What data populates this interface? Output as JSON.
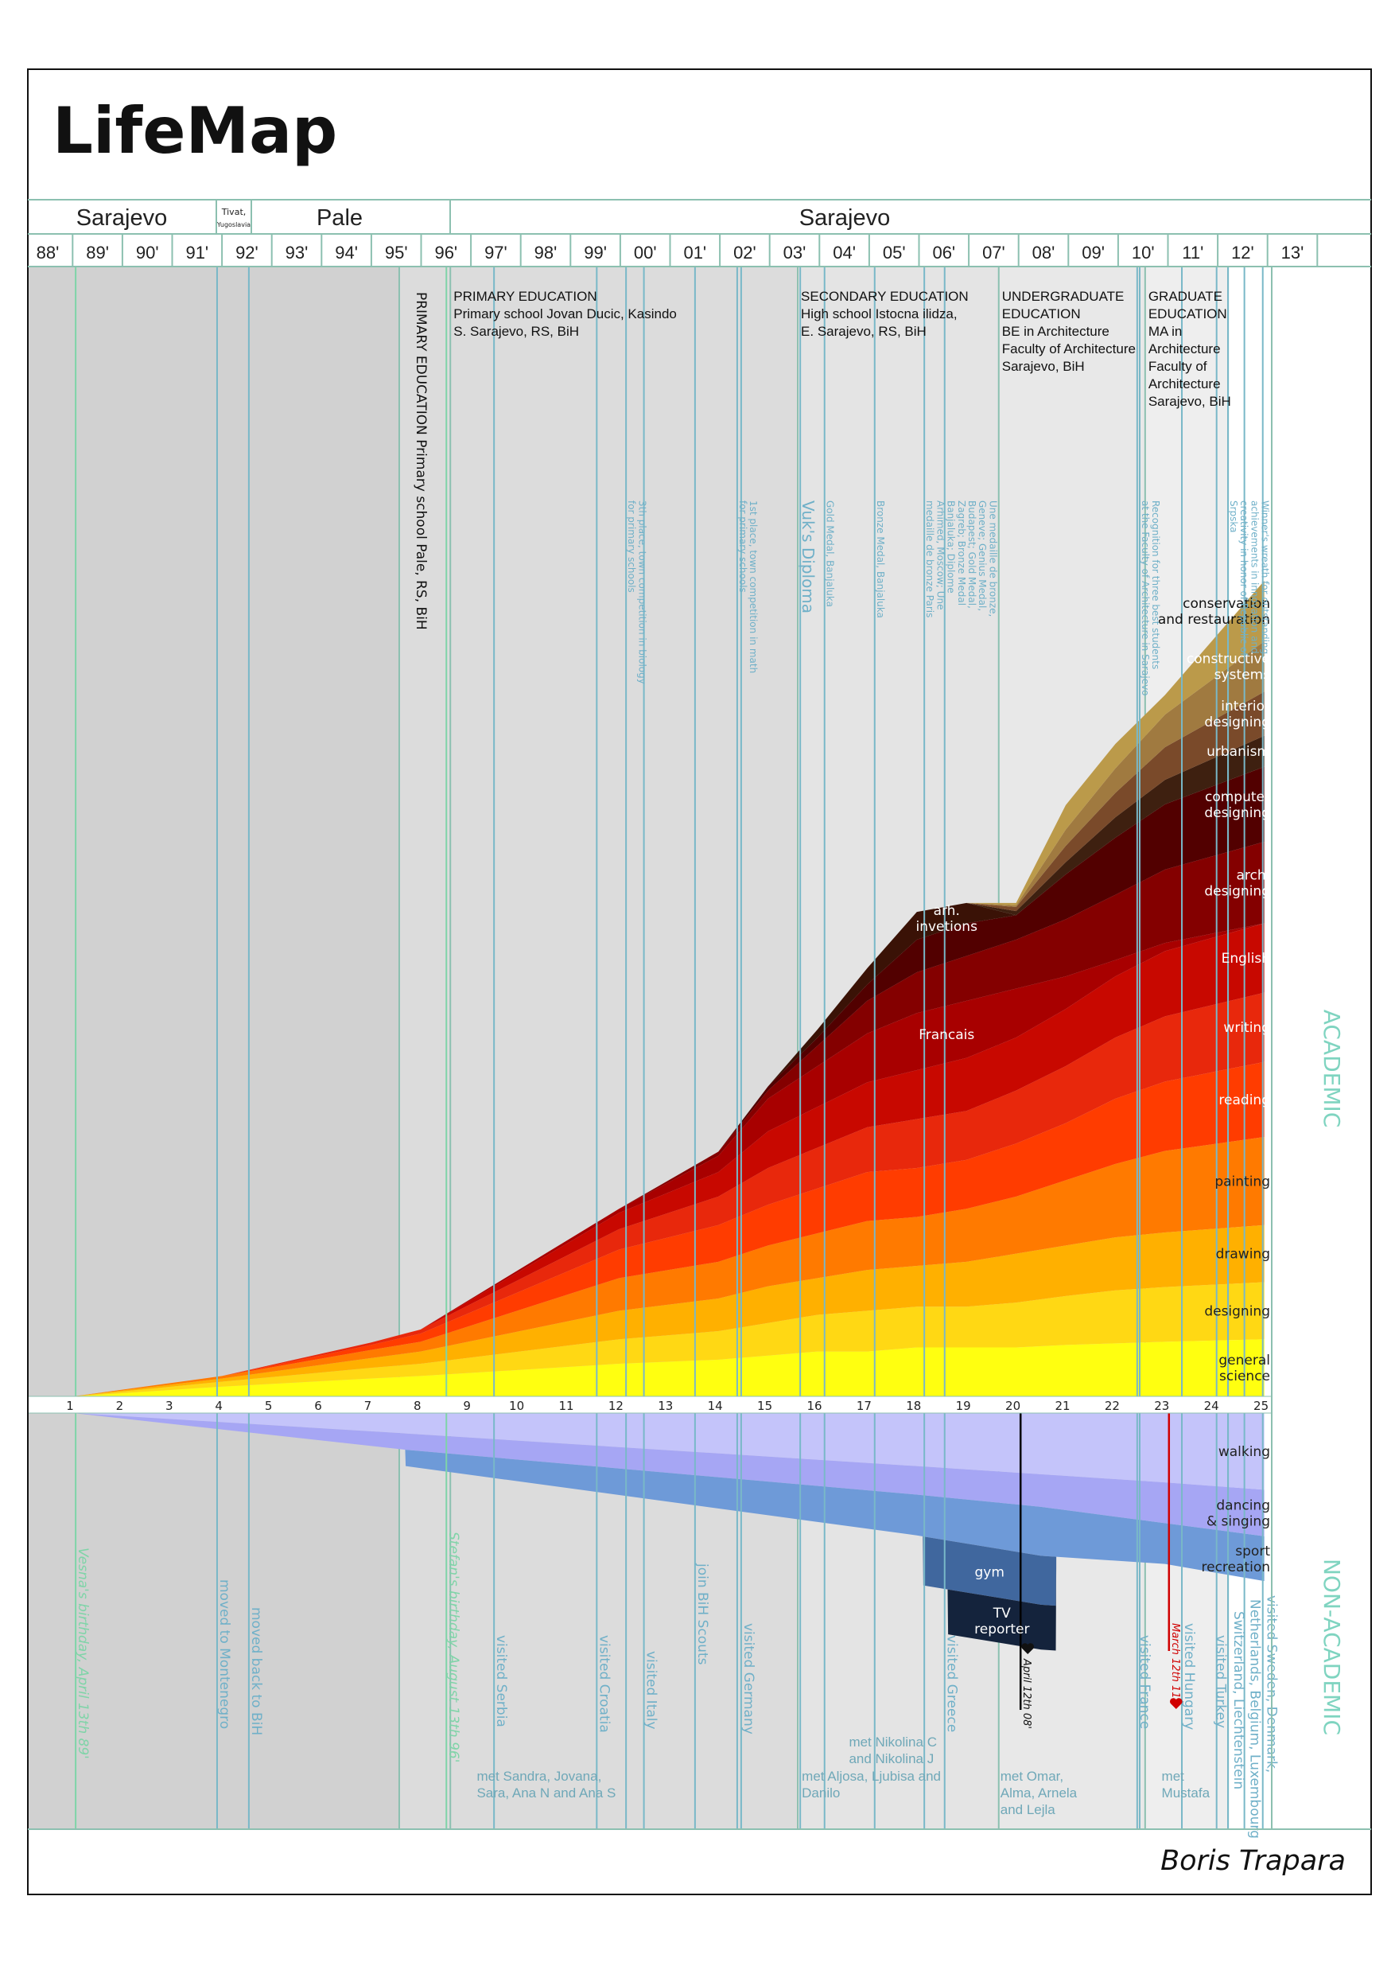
{
  "title": "LifeMap",
  "author": "Boris Trapara",
  "header": {
    "locations": [
      {
        "name": "Sarajevo"
      },
      {
        "name": "Tivat,",
        "sub": "Yugoslavia"
      },
      {
        "name": "Pale"
      },
      {
        "name": "Sarajevo"
      }
    ],
    "years": [
      "88'",
      "89'",
      "90'",
      "91'",
      "92'",
      "93'",
      "94'",
      "95'",
      "96'",
      "97'",
      "98'",
      "99'",
      "00'",
      "01'",
      "02'",
      "03'",
      "04'",
      "05'",
      "06'",
      "07'",
      "08'",
      "09'",
      "10'",
      "11'",
      "12'",
      "13'"
    ]
  },
  "side_labels": {
    "academic": "ACADEMIC",
    "non_academic": "NON-ACADEMIC"
  },
  "colors": {
    "grid_line": "#8cc0b0",
    "event_line": "#79b8c8",
    "birthday_line": "#7fd4a8",
    "side_label": "#7fd4c0",
    "heart_red": "#d00000"
  },
  "education": [
    {
      "start_age": 7.57,
      "color": "#dcdcdc",
      "vertical": true,
      "lines": [
        "PRIMARY EDUCATION Primary school Pale, RS, BiH"
      ]
    },
    {
      "start_age": 8.6,
      "color": "#dcdcdc",
      "lines": [
        "PRIMARY EDUCATION",
        "Primary school Jovan Ducic, Kasindo",
        "S. Sarajevo, RS, BiH"
      ]
    },
    {
      "start_age": 15.6,
      "color": "#e4e4e4",
      "lines": [
        "SECONDARY EDUCATION",
        "High school Istocna ilidza,",
        "E. Sarajevo, RS, BiH"
      ]
    },
    {
      "start_age": 19.65,
      "color": "#e8e8e8",
      "lines": [
        "UNDERGRADUATE",
        "EDUCATION",
        "BE in Architecture",
        "Faculty of Architecture",
        "Sarajevo, BiH"
      ]
    },
    {
      "start_age": 22.6,
      "color": "#eeeeee",
      "lines": [
        "GRADUATE",
        "EDUCATION",
        "MA in",
        "Architecture",
        "Faculty of",
        "Architecture",
        "Sarajevo, BiH"
      ]
    }
  ],
  "academic_events": [
    {
      "age": 12.14,
      "lines": [
        "3th place, town competition in biology",
        "for primary schools"
      ]
    },
    {
      "age": 14.38,
      "lines": [
        "1st place, town competition in math",
        "for primary schools"
      ]
    },
    {
      "age": 15.65,
      "big": true,
      "lines": [
        "Vuk's Diploma"
      ]
    },
    {
      "age": 16.14,
      "lines": [
        "Gold Medal, Banjaluka"
      ]
    },
    {
      "age": 17.15,
      "lines": [
        "Bronze Medal, Banjaluka"
      ]
    },
    {
      "age": 18.15,
      "lines": [
        "Une medaille de bronze,",
        "Geneve; Genius Medal,",
        "Budapest; Gold Medal,",
        "Zagreb; Bronze Medal",
        "Banjaluka; Diplome",
        "Arhimed, Moscow; Une",
        "medaille de bronze Paris"
      ]
    },
    {
      "age": 22.49,
      "lines": [
        "Recognition for three best students",
        "at the Faculty of Architecture in Sarajevo"
      ]
    },
    {
      "age": 24.27,
      "lines": [
        "Winner's wreath for outstanding",
        "achievements in innovation and",
        "creativity in honor of Republic of",
        "Srpska"
      ]
    }
  ],
  "life_events": [
    {
      "age": 1.05,
      "kind": "birthday",
      "text": "Vesna's birthday, April 13th 89'"
    },
    {
      "age": 3.9,
      "text": "moved to Montenegro"
    },
    {
      "age": 4.54,
      "text": "moved back to BiH"
    },
    {
      "age": 8.52,
      "kind": "birthday",
      "text": "Stefan's birthday, August 13th 96'"
    },
    {
      "age": 9.48,
      "text": "visited Serbia"
    },
    {
      "age": 11.55,
      "text": "visited Croatia"
    },
    {
      "age": 12.5,
      "text": "visited Italy"
    },
    {
      "age": 13.53,
      "text": "join BiH Scouts"
    },
    {
      "age": 14.46,
      "text": "visited Germany"
    },
    {
      "age": 18.56,
      "text": "visited Greece"
    },
    {
      "age": 20.09,
      "kind": "heart-black",
      "text": "April 12th 08'"
    },
    {
      "age": 22.44,
      "text": "visited France"
    },
    {
      "age": 23.08,
      "kind": "heart-red",
      "text": "March 12th 11'"
    },
    {
      "age": 23.34,
      "text": "visited Hungary"
    },
    {
      "age": 24.04,
      "text": "visited Turkey"
    },
    {
      "age": 24.27,
      "text": "Switzerland, Liechtenstein"
    },
    {
      "age": 24.6,
      "text": "Netherlands, Belgium, Luxembourg"
    },
    {
      "age": 24.97,
      "text": "visited Sweden, Denmark,"
    }
  ],
  "met": [
    {
      "age": 9.1,
      "lines": [
        "met Sandra, Jovana,",
        "Sara, Ana N and Ana S"
      ]
    },
    {
      "age": 16.6,
      "lines": [
        "met Nikolina C",
        "and Nikolina J"
      ]
    },
    {
      "age": 15.65,
      "lines": [
        "met Aljosa, Ljubisa and",
        "Danilo"
      ]
    },
    {
      "age": 19.65,
      "lines": [
        "met Omar,",
        "Alma, Arnela",
        "and Lejla"
      ]
    },
    {
      "age": 22.9,
      "lines": [
        "met",
        "Mustafa"
      ]
    }
  ],
  "chart_data": {
    "type": "area",
    "stacked": true,
    "x_label": "",
    "x_ticks": [
      1,
      2,
      3,
      4,
      5,
      6,
      7,
      8,
      9,
      10,
      11,
      12,
      13,
      14,
      15,
      16,
      17,
      18,
      19,
      20,
      21,
      22,
      23,
      24,
      25
    ],
    "x_range": [
      1,
      25
    ],
    "grid": false,
    "academic": {
      "direction": "up",
      "x": [
        1,
        4,
        7,
        8,
        12,
        14,
        15,
        16,
        17,
        18,
        19,
        20,
        21,
        22,
        23,
        25
      ],
      "series": [
        {
          "name": "general science",
          "label_lines": [
            "general",
            "science"
          ],
          "color": "#ffff10",
          "label_color": "#222",
          "values": [
            0,
            1.2,
            2.2,
            2.5,
            4,
            4.5,
            5,
            5.5,
            5.5,
            6,
            6,
            6,
            6.3,
            6.5,
            6.7,
            7
          ]
        },
        {
          "name": "designing",
          "label_lines": [
            "designing"
          ],
          "color": "#ffd814",
          "label_color": "#222",
          "values": [
            0,
            0.6,
            1.3,
            1.5,
            3,
            3.5,
            4,
            4.5,
            5,
            5,
            5,
            5.5,
            6,
            6.5,
            6.7,
            7
          ]
        },
        {
          "name": "drawing",
          "label_lines": [
            "drawing"
          ],
          "color": "#ffb000",
          "label_color": "#222",
          "values": [
            0,
            0.4,
            1.2,
            1.5,
            3.5,
            4,
            4.5,
            4.5,
            5,
            5,
            5.5,
            6,
            6.2,
            6.5,
            6.7,
            7
          ]
        },
        {
          "name": "painting",
          "label_lines": [
            "painting"
          ],
          "color": "#ff7a00",
          "label_color": "#222",
          "values": [
            0,
            0.3,
            1,
            1.2,
            4,
            4.5,
            5,
            5.5,
            6,
            6,
            6.5,
            7,
            8,
            9,
            10,
            10.8
          ]
        },
        {
          "name": "reading",
          "label_lines": [
            "reading"
          ],
          "color": "#ff3c00",
          "label_color": "#fff",
          "values": [
            0,
            0,
            0.6,
            1,
            3.5,
            4.5,
            5,
            5.5,
            6,
            6,
            6,
            6.5,
            7,
            8,
            8.5,
            9.2
          ]
        },
        {
          "name": "writing",
          "label_lines": [
            "writing"
          ],
          "color": "#e8280c",
          "label_color": "#fff",
          "values": [
            0,
            0,
            0.3,
            0.5,
            2.5,
            3.5,
            4.5,
            5,
            5.5,
            6,
            6,
            6.5,
            7,
            7.5,
            8,
            8.5
          ]
        },
        {
          "name": "English",
          "label_lines": [
            "English"
          ],
          "color": "#c80800",
          "label_color": "#fff",
          "values": [
            0,
            0,
            0,
            0,
            2,
            3,
            4.5,
            5,
            5.5,
            6,
            6.5,
            6.5,
            7,
            7.5,
            8,
            8.5
          ]
        },
        {
          "name": "Francais",
          "label_lines": [
            "Francais"
          ],
          "color": "#a80000",
          "label_color": "#fff",
          "values": [
            0,
            0,
            0,
            0,
            0.5,
            2,
            4,
            5,
            6,
            7,
            7,
            6,
            4,
            2,
            1,
            0
          ]
        },
        {
          "name": "arch. designing",
          "label_lines": [
            "arch.",
            "designing"
          ],
          "color": "#840000",
          "label_color": "#fff",
          "values": [
            0,
            0,
            0,
            0,
            0,
            0.5,
            1,
            2.5,
            4,
            5,
            5.5,
            6,
            7,
            8,
            9,
            10
          ]
        },
        {
          "name": "computer designing",
          "label_lines": [
            "computer",
            "designing"
          ],
          "color": "#520000",
          "label_color": "#fff",
          "values": [
            0,
            0,
            0,
            0,
            0,
            0,
            0.5,
            1,
            2,
            4,
            4,
            3,
            5.5,
            7,
            8,
            9.2
          ]
        },
        {
          "name": "arh. invetions",
          "label_lines": [
            "arh.",
            "invetions"
          ],
          "color": "#3a1206",
          "label_color": "#fff",
          "values": [
            0,
            0,
            0,
            0,
            0,
            0,
            0,
            1,
            2,
            3.4,
            2.5,
            0,
            0,
            0,
            0,
            0
          ]
        },
        {
          "name": "urbanism",
          "label_lines": [
            "urbanism"
          ],
          "color": "#3e2010",
          "label_color": "#fff",
          "values": [
            0,
            0,
            0,
            0,
            0,
            0,
            0,
            0,
            0,
            0,
            0,
            0.5,
            1.5,
            2.5,
            3,
            3.8
          ]
        },
        {
          "name": "interior designing",
          "label_lines": [
            "interior",
            "designing"
          ],
          "color": "#7a4a2a",
          "label_color": "#fff",
          "values": [
            0,
            0,
            0,
            0,
            0,
            0,
            0,
            0,
            0,
            0,
            0,
            0.5,
            2,
            3,
            4,
            5.4
          ]
        },
        {
          "name": "constructive systems",
          "label_lines": [
            "constructive",
            "systems"
          ],
          "color": "#a07a40",
          "label_color": "#fff",
          "values": [
            0,
            0,
            0,
            0,
            0,
            0,
            0,
            0,
            0,
            0,
            0,
            0.2,
            2,
            3,
            4,
            6.2
          ]
        },
        {
          "name": "conservation and restauration",
          "label_lines": [
            "conservation",
            "and restauration"
          ],
          "color": "#bb9a4a",
          "label_color": "#111",
          "values": [
            0,
            0,
            0,
            0,
            0,
            0,
            0,
            0,
            0,
            0,
            0,
            0.3,
            3,
            3,
            2.4,
            7.4
          ]
        }
      ]
    },
    "non_academic": {
      "direction": "down",
      "series": [
        {
          "name": "walking",
          "label_lines": [
            "walking"
          ],
          "color": "#c4c4fa",
          "label_color": "#222",
          "x": [
            1,
            7.7,
            18,
            20.5,
            23,
            25
          ],
          "values": [
            0,
            2.5,
            6.5,
            7.5,
            8.5,
            9.4
          ]
        },
        {
          "name": "dancing & singing",
          "label_lines": [
            "dancing",
            "& singing"
          ],
          "color": "#a6a6f4",
          "label_color": "#222",
          "x": [
            1,
            7.7,
            18,
            20.5,
            23,
            25
          ],
          "values": [
            0,
            2,
            3.5,
            4,
            5,
            5.7
          ]
        },
        {
          "name": "sport recreation",
          "label_lines": [
            "sport",
            "recreation"
          ],
          "color": "#6e9ad8",
          "label_color": "#222",
          "x": [
            7.69,
            7.7,
            18,
            20.5,
            23,
            25
          ],
          "values": [
            0,
            2,
            5,
            6,
            5,
            5.5
          ]
        },
        {
          "name": "gym",
          "label_lines": [
            "gym"
          ],
          "color": "#40679e",
          "label_color": "#fff",
          "x": [
            18.12,
            18.13,
            20.8,
            20.81
          ],
          "values": [
            0,
            6,
            6,
            0
          ]
        },
        {
          "name": "TV reporter",
          "label_lines": [
            "TV",
            "reporter"
          ],
          "color": "#14233c",
          "label_color": "#fff",
          "x": [
            18.62,
            18.63,
            20.8,
            20.81
          ],
          "values": [
            0,
            5.5,
            5.5,
            0
          ]
        }
      ]
    }
  }
}
